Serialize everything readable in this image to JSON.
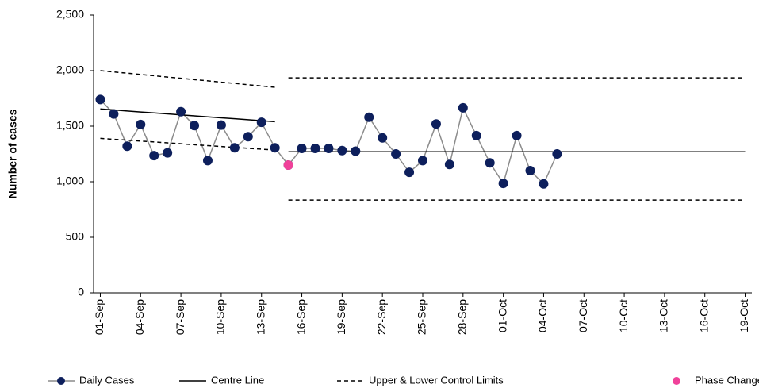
{
  "chart_data": {
    "type": "line",
    "y_label": "Number of cases",
    "categories": [
      "01-Sep",
      null,
      null,
      "04-Sep",
      null,
      null,
      "07-Sep",
      null,
      null,
      "10-Sep",
      null,
      null,
      "13-Sep",
      null,
      null,
      "16-Sep",
      null,
      null,
      "19-Sep",
      null,
      null,
      "22-Sep",
      null,
      null,
      "25-Sep",
      null,
      null,
      "28-Sep",
      null,
      null,
      "01-Oct",
      null,
      null,
      "04-Oct",
      null,
      null,
      "07-Oct",
      null,
      null,
      "10-Oct",
      null,
      null,
      "13-Oct",
      null,
      null,
      "16-Oct",
      null,
      null,
      "19-Oct"
    ],
    "ylim": [
      0,
      2500
    ],
    "yticks": [
      0,
      500,
      {
        "value": 1000,
        "label": "1,000"
      },
      {
        "value": 1500,
        "label": "1,500"
      },
      {
        "value": 2000,
        "label": "2,000"
      },
      {
        "value": 2500,
        "label": "2,500"
      }
    ],
    "series": [
      {
        "name": "Daily Cases",
        "color": "#0d1f5c",
        "line_color": "#8c8c8c",
        "line_style": "solid",
        "marker": true,
        "values": [
          1740,
          1610,
          1320,
          1515,
          1235,
          1260,
          1630,
          1505,
          1190,
          1510,
          1305,
          1405,
          1535,
          1305,
          1150,
          1300,
          1300,
          1300,
          1280,
          1275,
          1580,
          1395,
          1250,
          1085,
          1190,
          1520,
          1155,
          1665,
          1415,
          1170,
          985,
          1415,
          1100,
          980,
          1250,
          null,
          null,
          null,
          null,
          null,
          null,
          null,
          null,
          null,
          null,
          null,
          null,
          null,
          null
        ]
      },
      {
        "name": "Centre Line",
        "color": "#000000",
        "line_color": "#000000",
        "line_style": "solid",
        "marker": false,
        "values": [
          1655,
          1646,
          1637,
          1628,
          1620,
          1611,
          1602,
          1593,
          1584,
          1575,
          1567,
          1558,
          1549,
          1540,
          1270,
          1270,
          1270,
          1270,
          1270,
          1270,
          1270,
          1270,
          1270,
          1270,
          1270,
          1270,
          1270,
          1270,
          1270,
          1270,
          1270,
          1270,
          1270,
          1270,
          1270,
          1270,
          1270,
          1270,
          1270,
          1270,
          1270,
          1270,
          1270,
          1270,
          1270,
          1270,
          1270,
          1270,
          1270
        ]
      },
      {
        "name": "Upper & Lower Control Limits",
        "color": "#000000",
        "line_color": "#000000",
        "line_style": "dashed",
        "marker": false,
        "values": [
          2000,
          1988,
          1977,
          1965,
          1954,
          1942,
          1931,
          1919,
          1908,
          1896,
          1885,
          1873,
          1862,
          1850,
          1935,
          1935,
          1935,
          1935,
          1935,
          1935,
          1935,
          1935,
          1935,
          1935,
          1935,
          1935,
          1935,
          1935,
          1935,
          1935,
          1935,
          1935,
          1935,
          1935,
          1935,
          1935,
          1935,
          1935,
          1935,
          1935,
          1935,
          1935,
          1935,
          1935,
          1935,
          1935,
          1935,
          1935,
          1935
        ],
        "lower": [
          1390,
          1382,
          1374,
          1366,
          1358,
          1350,
          1342,
          1333,
          1325,
          1317,
          1309,
          1301,
          1293,
          1285,
          835,
          835,
          835,
          835,
          835,
          835,
          835,
          835,
          835,
          835,
          835,
          835,
          835,
          835,
          835,
          835,
          835,
          835,
          835,
          835,
          835,
          835,
          835,
          835,
          835,
          835,
          835,
          835,
          835,
          835,
          835,
          835,
          835,
          835,
          835
        ]
      },
      {
        "name": "Phase Change",
        "color": "#f0419a",
        "line_style": "none",
        "marker": true,
        "values": [
          null,
          null,
          null,
          null,
          null,
          null,
          null,
          null,
          null,
          null,
          null,
          null,
          null,
          null,
          1150,
          null,
          null,
          null,
          null,
          null,
          null,
          null,
          null,
          null,
          null,
          null,
          null,
          null,
          null,
          null,
          null,
          null,
          null,
          null,
          null,
          null,
          null,
          null,
          null,
          null,
          null,
          null,
          null,
          null,
          null,
          null,
          null,
          null,
          null
        ]
      }
    ]
  }
}
